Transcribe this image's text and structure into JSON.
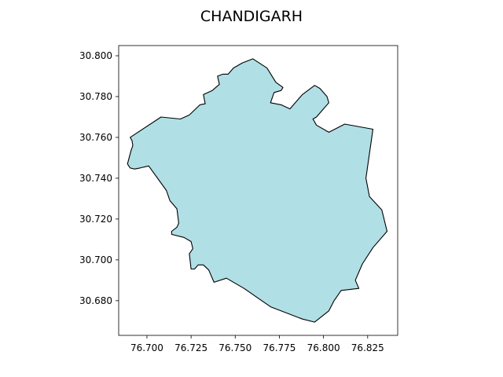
{
  "map": {
    "title": "CHANDIGARH",
    "region": "Chandigarh",
    "fill_color": "#b0dfe5",
    "edge_color": "#000000",
    "xlim": [
      76.684,
      76.842
    ],
    "ylim": [
      30.663,
      30.805
    ],
    "x_ticks": [
      76.7,
      76.725,
      76.75,
      76.775,
      76.8,
      76.825
    ],
    "x_tick_labels": [
      "76.700",
      "76.725",
      "76.750",
      "76.775",
      "76.800",
      "76.825"
    ],
    "y_ticks": [
      30.68,
      30.7,
      30.72,
      30.74,
      30.76,
      30.78,
      30.8
    ],
    "y_tick_labels": [
      "30.680",
      "30.700",
      "30.720",
      "30.740",
      "30.760",
      "30.780",
      "30.800"
    ],
    "boundary": [
      [
        76.6905,
        30.76
      ],
      [
        76.708,
        30.77
      ],
      [
        76.719,
        30.769
      ],
      [
        76.724,
        30.771
      ],
      [
        76.73,
        30.776
      ],
      [
        76.733,
        30.7765
      ],
      [
        76.732,
        30.781
      ],
      [
        76.737,
        30.783
      ],
      [
        76.741,
        30.786
      ],
      [
        76.74,
        30.79
      ],
      [
        76.743,
        30.791
      ],
      [
        76.746,
        30.791
      ],
      [
        76.749,
        30.794
      ],
      [
        76.754,
        30.7965
      ],
      [
        76.76,
        30.7985
      ],
      [
        76.768,
        30.794
      ],
      [
        76.773,
        30.787
      ],
      [
        76.777,
        30.7845
      ],
      [
        76.776,
        30.783
      ],
      [
        76.772,
        30.782
      ],
      [
        76.77,
        30.777
      ],
      [
        76.776,
        30.776
      ],
      [
        76.781,
        30.774
      ],
      [
        76.788,
        30.781
      ],
      [
        76.795,
        30.7855
      ],
      [
        76.798,
        30.784
      ],
      [
        76.802,
        30.78
      ],
      [
        76.803,
        30.777
      ],
      [
        76.8,
        30.774
      ],
      [
        76.796,
        30.77
      ],
      [
        76.794,
        30.769
      ],
      [
        76.796,
        30.766
      ],
      [
        76.803,
        30.7625
      ],
      [
        76.812,
        30.7665
      ],
      [
        76.828,
        30.764
      ],
      [
        76.824,
        30.74
      ],
      [
        76.826,
        30.731
      ],
      [
        76.833,
        30.7245
      ],
      [
        76.836,
        30.714
      ],
      [
        76.828,
        30.706
      ],
      [
        76.822,
        30.698
      ],
      [
        76.818,
        30.69
      ],
      [
        76.82,
        30.686
      ],
      [
        76.81,
        30.685
      ],
      [
        76.806,
        30.68
      ],
      [
        76.803,
        30.675
      ],
      [
        76.795,
        30.6695
      ],
      [
        76.788,
        30.671
      ],
      [
        76.77,
        30.677
      ],
      [
        76.755,
        30.686
      ],
      [
        76.745,
        30.691
      ],
      [
        76.738,
        30.689
      ],
      [
        76.735,
        30.695
      ],
      [
        76.732,
        30.6975
      ],
      [
        76.729,
        30.6975
      ],
      [
        76.727,
        30.6955
      ],
      [
        76.725,
        30.6955
      ],
      [
        76.724,
        30.703
      ],
      [
        76.726,
        30.7055
      ],
      [
        76.725,
        30.709
      ],
      [
        76.721,
        30.711
      ],
      [
        76.714,
        30.7125
      ],
      [
        76.714,
        30.714
      ],
      [
        76.717,
        30.716
      ],
      [
        76.718,
        30.718
      ],
      [
        76.717,
        30.725
      ],
      [
        76.713,
        30.729
      ],
      [
        76.711,
        30.734
      ],
      [
        76.701,
        30.746
      ],
      [
        76.696,
        30.745
      ],
      [
        76.693,
        30.7445
      ],
      [
        76.6905,
        30.745
      ],
      [
        76.689,
        30.747
      ],
      [
        76.691,
        30.7535
      ],
      [
        76.692,
        30.756
      ],
      [
        76.6915,
        30.7585
      ]
    ]
  }
}
